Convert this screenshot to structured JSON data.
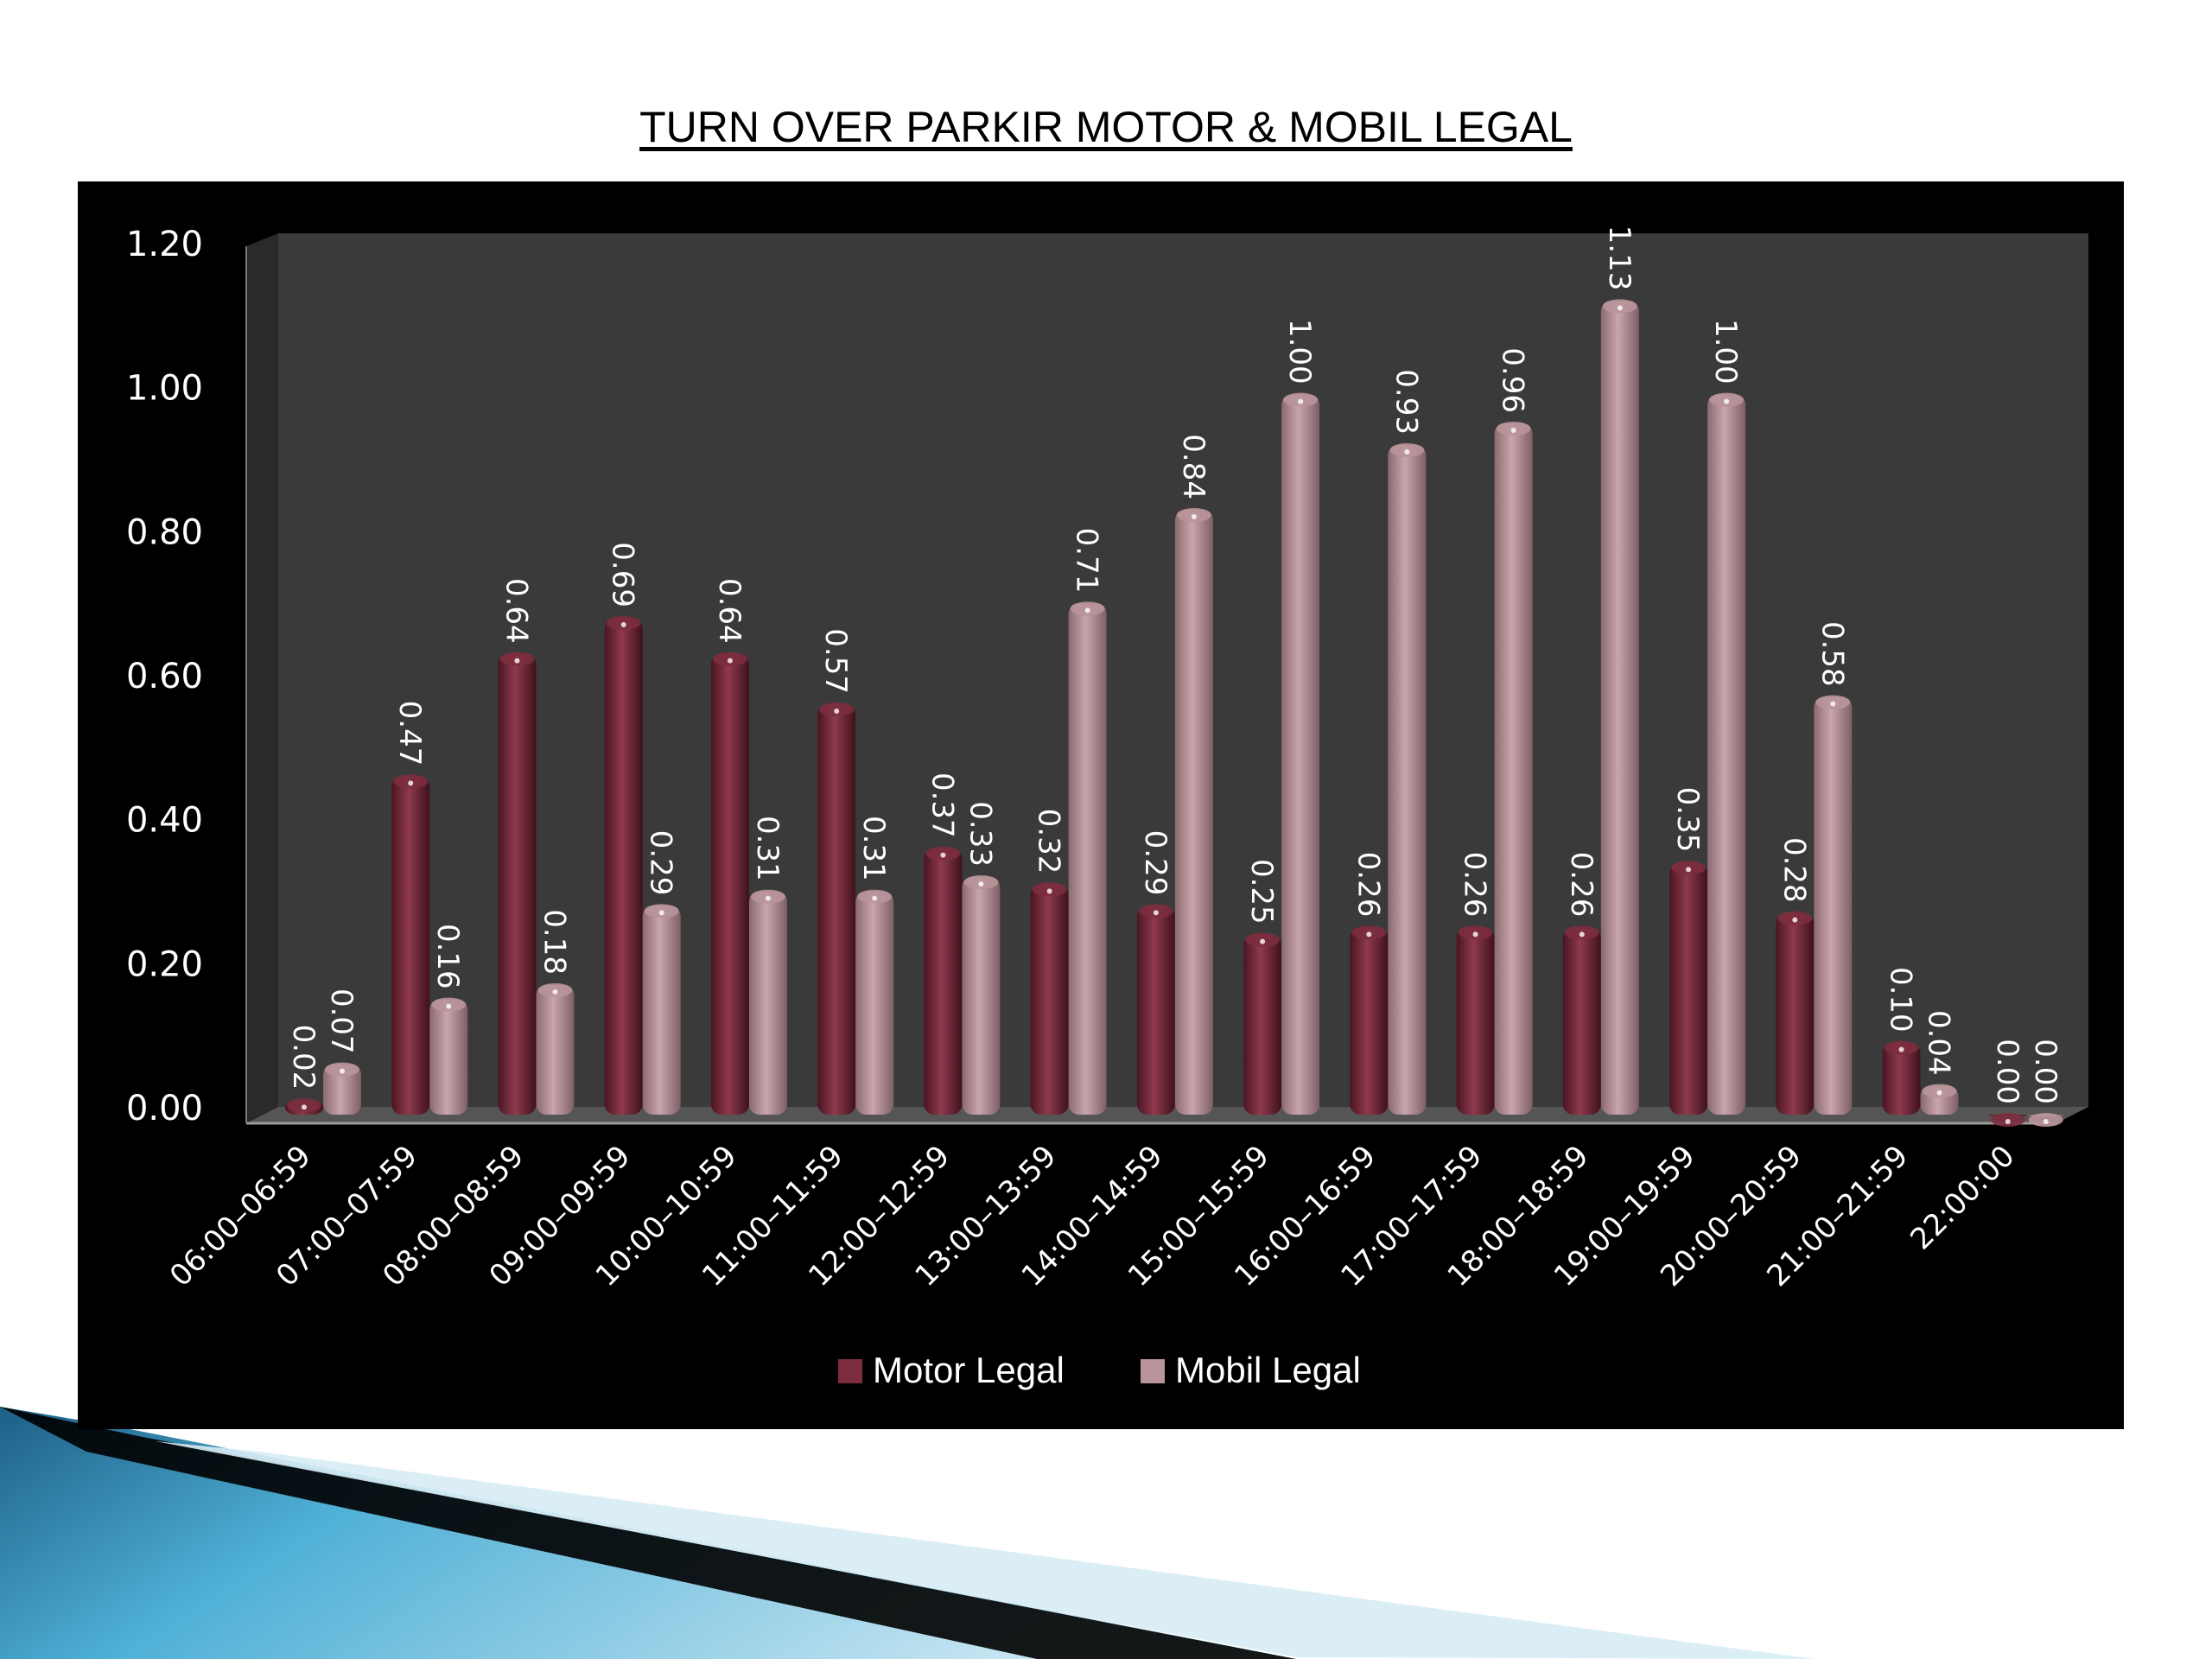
{
  "chart_data": {
    "type": "bar",
    "title": "TURN OVER PARKIR MOTOR & MOBIL LEGAL",
    "categories": [
      "06:00–06:59",
      "07:00–07:59",
      "08:00–08:59",
      "09:00–09:59",
      "10:00–10:59",
      "11:00–11:59",
      "12:00–12:59",
      "13:00–13:59",
      "14:00–14:59",
      "15:00–15:59",
      "16:00–16:59",
      "17:00–17:59",
      "18:00–18:59",
      "19:00–19:59",
      "20:00–20:59",
      "21:00–21:59",
      "22:00:00"
    ],
    "series": [
      {
        "name": "Motor Legal",
        "color": "#7b2d3e",
        "values": [
          0.02,
          0.47,
          0.64,
          0.69,
          0.64,
          0.57,
          0.37,
          0.32,
          0.29,
          0.25,
          0.26,
          0.26,
          0.26,
          0.35,
          0.28,
          0.1,
          0.0
        ]
      },
      {
        "name": "Mobil Legal",
        "color": "#b9949a",
        "values": [
          0.07,
          0.16,
          0.18,
          0.29,
          0.31,
          0.31,
          0.33,
          0.71,
          0.84,
          1.0,
          0.93,
          0.96,
          1.13,
          1.0,
          0.58,
          0.04,
          0.0
        ]
      }
    ],
    "yticks": [
      "0.00",
      "0.20",
      "0.40",
      "0.60",
      "0.80",
      "1.00",
      "1.20"
    ],
    "ylim": [
      0,
      1.2
    ],
    "value_format": "0.00",
    "legend_position": "bottom",
    "grid": false,
    "background": "#000000",
    "plot_background": "#3a3a3a"
  }
}
